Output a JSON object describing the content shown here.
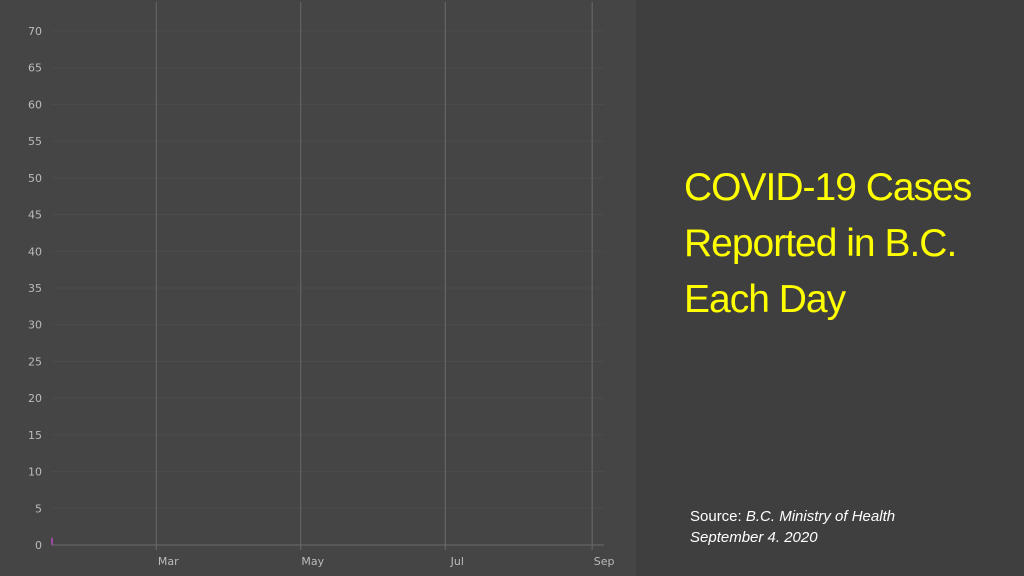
{
  "title_lines": [
    "COVID-19 Cases",
    "Reported in B.C.",
    "Each Day"
  ],
  "source": {
    "prefix": "Source: ",
    "name": "B.C. Ministry of Health",
    "date": "September 4. 2020"
  },
  "colors": {
    "background": "#3f3f3f",
    "chart_background": "#454545",
    "gridline": "#4c4c4c",
    "month_line": "#6a6a6a",
    "axis_text": "#bbbbbb",
    "title": "#ffff00",
    "source_text": "#ffffff"
  },
  "chart_data": {
    "type": "bar",
    "stacked": true,
    "title": "",
    "xlabel": "",
    "ylabel": "",
    "ylim": [
      0,
      70
    ],
    "yticks": [
      0,
      5,
      10,
      15,
      20,
      25,
      30,
      35,
      40,
      45,
      50,
      55,
      60,
      65,
      70
    ],
    "xlim": [
      0,
      233
    ],
    "xticks": [
      {
        "day": 44,
        "label": "Mar"
      },
      {
        "day": 105,
        "label": "May"
      },
      {
        "day": 166,
        "label": "Jul"
      },
      {
        "day": 228,
        "label": "Sep"
      }
    ],
    "grid": true,
    "legend": "none",
    "series": [
      {
        "color": "#1e90d4",
        "values": []
      },
      {
        "color": "#2a8a3a",
        "values": []
      },
      {
        "color": "#e89a10",
        "values": []
      },
      {
        "color": "#dd2a2a",
        "values": []
      },
      {
        "color": "#9a4a9e",
        "values": [
          1,
          0,
          0,
          0,
          0,
          0,
          0,
          0,
          0,
          0,
          0,
          0,
          0,
          0,
          0,
          0,
          0,
          0,
          0,
          0,
          0,
          0,
          0,
          0,
          0,
          0,
          0,
          0,
          0,
          0,
          0,
          0,
          0,
          0,
          0,
          0,
          0,
          0,
          0,
          0,
          0,
          0,
          0,
          0,
          0,
          0,
          0,
          0,
          0,
          0,
          0,
          0,
          0,
          0,
          0,
          0,
          0,
          0,
          0,
          0,
          0,
          0,
          0,
          0,
          0,
          0,
          0,
          0,
          0,
          0,
          0,
          0,
          0,
          0,
          0,
          0,
          0,
          0,
          0,
          0,
          0,
          0,
          0,
          0,
          0,
          0,
          0,
          0,
          0,
          0,
          0,
          0,
          0,
          0,
          0,
          0,
          0,
          0,
          0,
          0,
          0,
          0,
          0,
          0,
          0,
          0,
          0,
          0,
          0,
          0,
          0,
          0,
          0,
          0,
          0,
          0,
          0,
          0,
          0,
          0,
          0,
          0,
          0,
          0,
          0,
          0,
          0,
          0,
          0,
          0,
          0,
          0,
          0,
          0,
          0,
          0,
          0,
          0,
          0,
          0,
          0,
          0,
          0,
          0,
          0,
          0,
          0,
          0,
          0,
          0,
          0,
          0,
          0,
          0,
          0,
          0,
          0,
          0,
          0,
          0,
          0,
          0,
          0,
          0,
          0,
          0,
          0,
          0,
          0,
          0,
          0,
          0,
          0,
          0,
          0,
          0,
          0,
          0,
          0,
          0,
          0,
          0,
          0,
          0,
          0,
          0,
          0,
          0,
          0,
          0,
          0,
          0,
          0,
          0,
          0,
          0,
          0,
          0,
          0,
          0,
          0,
          0,
          0,
          0,
          0,
          0,
          0,
          0,
          0,
          0,
          0,
          0,
          0,
          0,
          0,
          0,
          0,
          0,
          0,
          0,
          0,
          0,
          0,
          0,
          0,
          0,
          0,
          0,
          0
        ]
      }
    ]
  }
}
